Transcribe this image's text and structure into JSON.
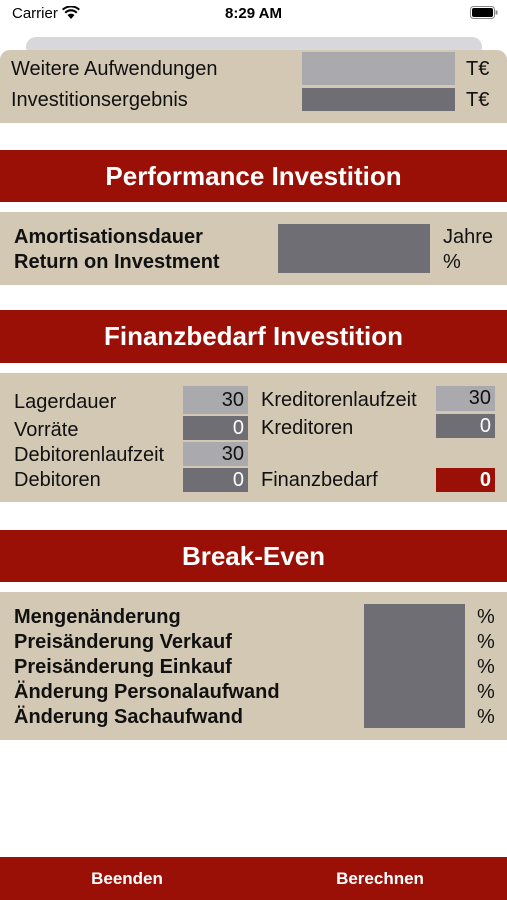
{
  "status_bar": {
    "carrier": "Carrier",
    "time": "8:29 AM"
  },
  "results": {
    "rows": [
      {
        "label": "Weitere Aufwendungen",
        "unit": "T€"
      },
      {
        "label": "Investitionsergebnis",
        "unit": "T€"
      }
    ]
  },
  "performance": {
    "title": "Performance Investition",
    "rows": [
      {
        "label": "Amortisationsdauer",
        "unit": "Jahre"
      },
      {
        "label": "Return on Investment",
        "unit": "%"
      }
    ]
  },
  "finanzbedarf": {
    "title": "Finanzbedarf Investition",
    "left": [
      {
        "label": "Lagerdauer",
        "value": 30
      },
      {
        "label": "Vorräte",
        "value": 0
      },
      {
        "label": "Debitorenlaufzeit",
        "value": 30
      },
      {
        "label": "Debitoren",
        "value": 0
      }
    ],
    "right": [
      {
        "label": "Kreditorenlaufzeit",
        "value": 30
      },
      {
        "label": "Kreditoren",
        "value": 0
      },
      {
        "label": "Finanzbedarf",
        "value": 0
      }
    ]
  },
  "break_even": {
    "title": "Break-Even",
    "rows": [
      {
        "label": "Mengenänderung",
        "unit": "%"
      },
      {
        "label": "Preisänderung Verkauf",
        "unit": "%"
      },
      {
        "label": "Preisänderung Einkauf",
        "unit": "%"
      },
      {
        "label": "Änderung Personalaufwand",
        "unit": "%"
      },
      {
        "label": "Änderung Sachaufwand",
        "unit": "%"
      }
    ]
  },
  "buttons": {
    "quit": "Beenden",
    "compute": "Berechnen"
  }
}
